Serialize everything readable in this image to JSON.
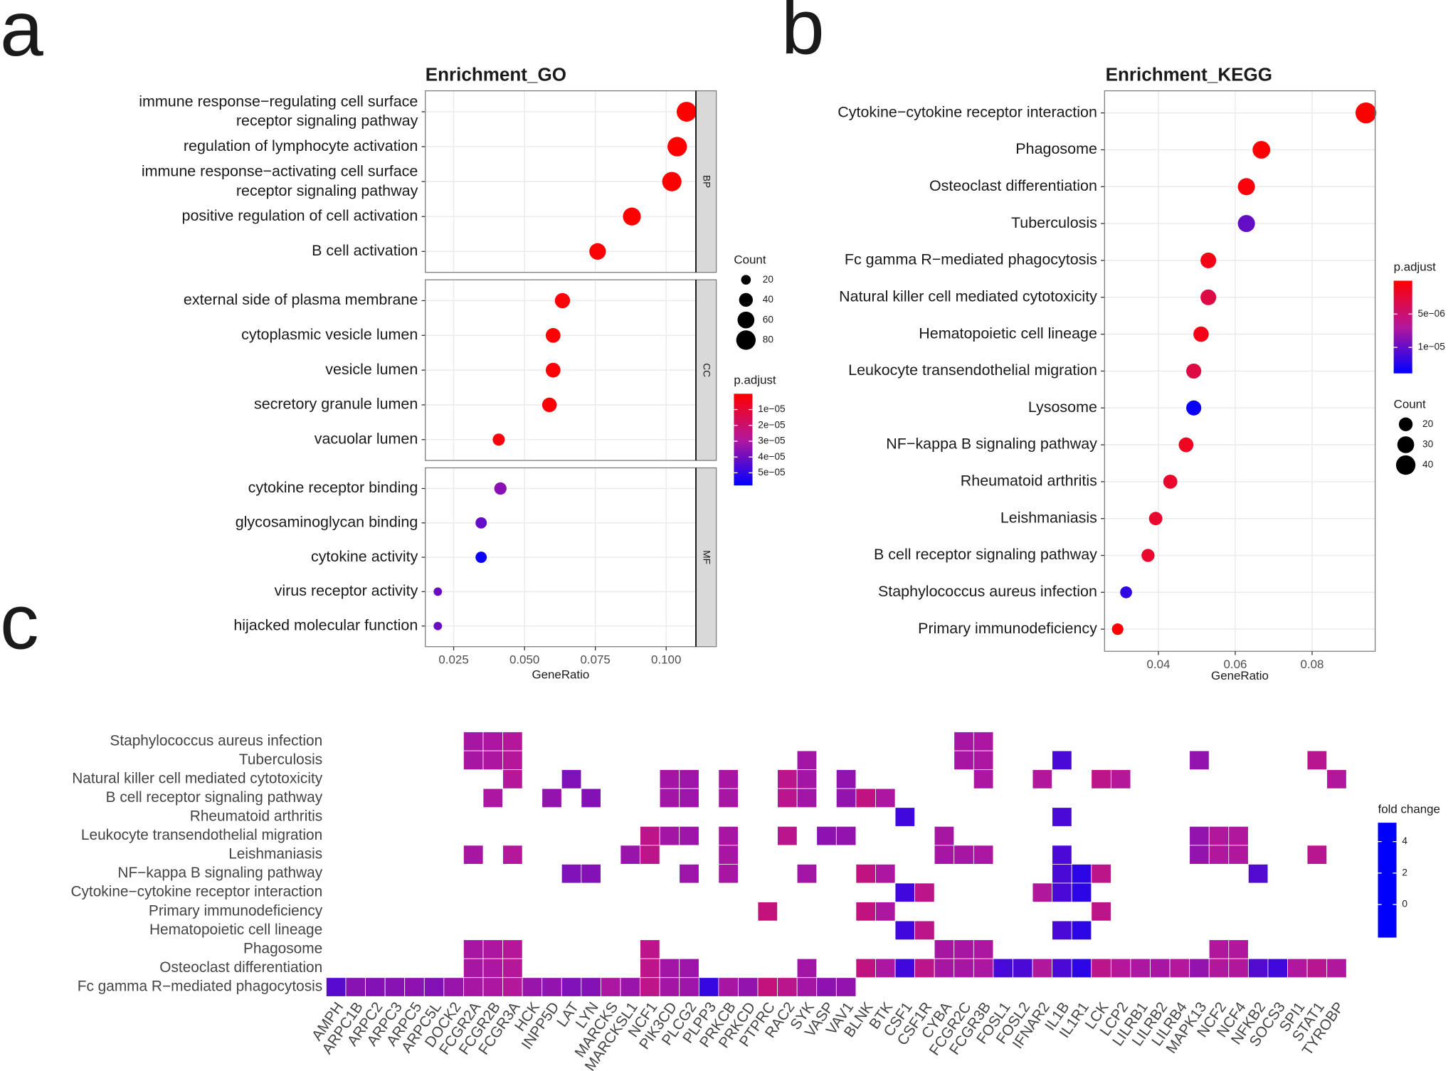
{
  "chart_data": [
    {
      "type": "dot",
      "panel_label": "a",
      "title": "Enrichment_GO",
      "x_label": "GeneRatio",
      "facets": [
        {
          "name": "BP",
          "categories": [
            "immune response−regulating cell surface\nreceptor signaling pathway",
            "regulation of lymphocyte activation",
            "immune response−activating cell surface\nreceptor signaling pathway",
            "positive regulation of cell activation",
            "B cell activation"
          ],
          "values": [
            0.1072,
            0.1039,
            0.102,
            0.0879,
            0.0758
          ],
          "counts": [
            83,
            80,
            79,
            68,
            58
          ],
          "p_adjust": [
            2e-08,
            5e-08,
            3e-08,
            1e-07,
            8e-07
          ]
        },
        {
          "name": "CC",
          "categories": [
            "external side of plasma membrane",
            "cytoplasmic vesicle lumen",
            "vesicle lumen",
            "secretory granule lumen",
            "vacuolar lumen"
          ],
          "values": [
            0.0634,
            0.0601,
            0.0601,
            0.0588,
            0.0409
          ],
          "counts": [
            49,
            46,
            46,
            45,
            31
          ],
          "p_adjust": [
            1e-06,
            1e-06,
            1e-06,
            1e-06,
            2e-06
          ]
        },
        {
          "name": "MF",
          "categories": [
            "cytokine receptor binding",
            "glycosaminoglycan binding",
            "cytokine activity",
            "virus receptor activity",
            "hijacked molecular function"
          ],
          "values": [
            0.0415,
            0.0347,
            0.0347,
            0.0194,
            0.0194
          ],
          "counts": [
            32,
            27,
            27,
            15,
            15
          ],
          "p_adjust": [
            3.6e-05,
            4.2e-05,
            5.6e-05,
            4.1e-05,
            4.1e-05
          ]
        }
      ],
      "xlim": [
        0.015,
        0.1105
      ],
      "xticks": [
        0.025,
        {
          "value": 0.05,
          "label": "0.050"
        },
        0.075,
        {
          "value": 0.1,
          "label": "0.100"
        }
      ],
      "grid": true,
      "size_legend": {
        "title": "Count",
        "values": [
          20,
          40,
          60,
          80
        ]
      },
      "color_legend": {
        "title": "p.adjust",
        "clim": [
          0,
          5.8e-05
        ],
        "reverse": true,
        "colors": [
          "#ff0000",
          "#b3179c",
          "#0000ff"
        ],
        "ticks": [
          {
            "value": 1e-05,
            "label": "1e−05"
          },
          {
            "value": 2e-05,
            "label": "2e−05"
          },
          {
            "value": 3e-05,
            "label": "3e−05"
          },
          {
            "value": 4e-05,
            "label": "4e−05"
          },
          {
            "value": 5e-05,
            "label": "5e−05"
          }
        ]
      }
    },
    {
      "type": "dot",
      "panel_label": "b",
      "title": "Enrichment_KEGG",
      "x_label": "GeneRatio",
      "categories": [
        "Cytokine−cytokine receptor interaction",
        "Phagosome",
        "Osteoclast differentiation",
        "Tuberculosis",
        "Fc gamma R−mediated phagocytosis",
        "Natural killer cell mediated cytotoxicity",
        "Hematopoietic cell lineage",
        "Leukocyte transendothelial migration",
        "Lysosome",
        "NF−kappa B signaling pathway",
        "Rheumatoid arthritis",
        "Leishmaniasis",
        "B cell receptor signaling pathway",
        "Staphylococcus aureus infection",
        "Primary immunodeficiency"
      ],
      "values": [
        0.094,
        0.0668,
        0.0629,
        0.0629,
        0.053,
        0.053,
        0.0511,
        0.0492,
        0.0492,
        0.0472,
        0.0431,
        0.0393,
        0.0373,
        0.0316,
        0.0294
      ],
      "counts": [
        46,
        33,
        31,
        31,
        26,
        26,
        25,
        24,
        24,
        23,
        21,
        19,
        18,
        15,
        14
      ],
      "p_adjust": [
        1e-08,
        1e-07,
        5e-07,
        1e-05,
        1e-06,
        3e-06,
        1e-06,
        3e-06,
        1.35e-05,
        1.5e-06,
        2e-06,
        2e-06,
        2e-06,
        1.2e-05,
        1e-07
      ],
      "xlim": [
        0.026,
        0.0964
      ],
      "xticks": [
        0.04,
        0.06,
        0.08
      ],
      "grid": true,
      "size_legend": {
        "title": "Count",
        "values": [
          20,
          30,
          40
        ]
      },
      "color_legend": {
        "title": "p.adjust",
        "clim": [
          0,
          1.39e-05
        ],
        "reverse": true,
        "colors": [
          "#ff0000",
          "#b3179c",
          "#0000ff"
        ],
        "ticks": [
          {
            "value": 5e-06,
            "label": "5e−06"
          },
          {
            "value": 1e-05,
            "label": "1e−05"
          }
        ]
      }
    },
    {
      "type": "heatmap",
      "panel_label": "c",
      "x": [
        "AMPH",
        "ARPC1B",
        "ARPC2",
        "ARPC3",
        "ARPC5",
        "ARPC5L",
        "DOCK2",
        "FCGR2A",
        "FCGR2B",
        "FCGR3A",
        "HCK",
        "INPP5D",
        "LAT",
        "LYN",
        "MARCKS",
        "MARCKSL1",
        "NCF1",
        "PIK3CD",
        "PLCG2",
        "PLPP3",
        "PRKCB",
        "PRKCD",
        "PTPRC",
        "RAC2",
        "SYK",
        "VASP",
        "VAV1",
        "BLNK",
        "BTK",
        "CSF1",
        "CSF1R",
        "CYBA",
        "FCGR2C",
        "FCGR3B",
        "FOSL1",
        "FOSL2",
        "IFNAR2",
        "IL1B",
        "IL1R1",
        "LCK",
        "LCP2",
        "LILRB1",
        "LILRB2",
        "LILRB4",
        "MAPK13",
        "NCF2",
        "NCF4",
        "NFKB2",
        "SOCS3",
        "SPI1",
        "STAT1",
        "TYROBP"
      ],
      "y": [
        "Staphylococcus aureus infection",
        "Tuberculosis",
        "Natural killer cell mediated cytotoxicity",
        "B cell receptor signaling pathway",
        "Rheumatoid arthritis",
        "Leukocyte transendothelial migration",
        "Leishmaniasis",
        "NF−kappa B signaling pathway",
        "Cytokine−cytokine receptor interaction",
        "Primary immunodeficiency",
        "Hematopoietic cell lineage",
        "Phagosome",
        "Osteoclast differentiation",
        "Fc gamma R−mediated phagocytosis"
      ],
      "z": [
        [
          null,
          null,
          null,
          null,
          null,
          null,
          null,
          1.3,
          1.4,
          1.6,
          null,
          null,
          null,
          null,
          null,
          null,
          null,
          null,
          null,
          null,
          null,
          null,
          null,
          null,
          null,
          null,
          null,
          null,
          null,
          null,
          null,
          null,
          1.3,
          1.4,
          null,
          null,
          null,
          null,
          null,
          null,
          null,
          null,
          null,
          null,
          null,
          null,
          null,
          null,
          null,
          null,
          null,
          null
        ],
        [
          null,
          null,
          null,
          null,
          null,
          null,
          null,
          1.3,
          1.4,
          1.6,
          null,
          null,
          null,
          null,
          null,
          null,
          null,
          null,
          null,
          null,
          null,
          null,
          null,
          null,
          1.2,
          null,
          null,
          null,
          null,
          null,
          null,
          null,
          1.3,
          1.4,
          null,
          null,
          null,
          -0.6,
          null,
          null,
          null,
          null,
          null,
          null,
          0.9,
          null,
          null,
          null,
          null,
          null,
          1.8,
          null
        ],
        [
          null,
          null,
          null,
          null,
          null,
          null,
          null,
          null,
          null,
          1.6,
          null,
          null,
          0.5,
          null,
          null,
          null,
          null,
          1.2,
          1.1,
          null,
          1.3,
          null,
          null,
          1.9,
          1.2,
          null,
          0.9,
          null,
          null,
          null,
          null,
          null,
          null,
          1.4,
          null,
          null,
          1.5,
          null,
          null,
          2.0,
          1.6,
          null,
          null,
          null,
          null,
          null,
          null,
          null,
          null,
          null,
          null,
          1.5
        ],
        [
          null,
          null,
          null,
          null,
          null,
          null,
          null,
          null,
          1.4,
          null,
          null,
          0.9,
          null,
          0.6,
          null,
          null,
          null,
          1.2,
          1.1,
          null,
          1.3,
          null,
          null,
          1.9,
          1.2,
          null,
          0.9,
          2.2,
          1.4,
          null,
          null,
          null,
          null,
          null,
          null,
          null,
          null,
          null,
          null,
          null,
          null,
          null,
          null,
          null,
          null,
          null,
          null,
          null,
          null,
          null,
          null,
          null
        ],
        [
          null,
          null,
          null,
          null,
          null,
          null,
          null,
          null,
          null,
          null,
          null,
          null,
          null,
          null,
          null,
          null,
          null,
          null,
          null,
          null,
          null,
          null,
          null,
          null,
          null,
          null,
          null,
          null,
          null,
          -0.8,
          null,
          null,
          null,
          null,
          null,
          null,
          null,
          -0.6,
          null,
          null,
          null,
          null,
          null,
          null,
          null,
          null,
          null,
          null,
          null,
          null,
          null,
          null
        ],
        [
          null,
          null,
          null,
          null,
          null,
          null,
          null,
          null,
          null,
          null,
          null,
          null,
          null,
          null,
          null,
          null,
          2.0,
          1.2,
          1.1,
          null,
          1.3,
          null,
          null,
          1.9,
          null,
          0.8,
          0.9,
          null,
          null,
          null,
          null,
          1.3,
          null,
          null,
          null,
          null,
          null,
          null,
          null,
          null,
          null,
          null,
          null,
          null,
          0.9,
          1.5,
          1.5,
          null,
          null,
          null,
          null,
          null
        ],
        [
          null,
          null,
          null,
          null,
          null,
          null,
          null,
          1.3,
          null,
          1.6,
          null,
          null,
          null,
          null,
          null,
          1.0,
          2.0,
          null,
          null,
          null,
          1.3,
          null,
          null,
          null,
          null,
          null,
          null,
          null,
          null,
          null,
          null,
          1.3,
          1.3,
          1.4,
          null,
          null,
          null,
          -0.6,
          null,
          null,
          null,
          null,
          null,
          null,
          0.9,
          1.5,
          1.5,
          null,
          null,
          null,
          1.8,
          null
        ],
        [
          null,
          null,
          null,
          null,
          null,
          null,
          null,
          null,
          null,
          null,
          null,
          null,
          0.5,
          0.6,
          null,
          null,
          null,
          null,
          1.1,
          null,
          1.3,
          null,
          null,
          null,
          1.2,
          null,
          null,
          2.2,
          1.4,
          null,
          null,
          null,
          null,
          null,
          null,
          null,
          null,
          -0.6,
          -1.2,
          2.0,
          null,
          null,
          null,
          null,
          null,
          null,
          null,
          -0.4,
          null,
          null,
          null,
          null
        ],
        [
          null,
          null,
          null,
          null,
          null,
          null,
          null,
          null,
          null,
          null,
          null,
          null,
          null,
          null,
          null,
          null,
          null,
          null,
          null,
          null,
          null,
          null,
          null,
          null,
          null,
          null,
          null,
          null,
          null,
          -0.8,
          2.0,
          null,
          null,
          null,
          null,
          null,
          1.5,
          -0.6,
          -1.2,
          null,
          null,
          null,
          null,
          null,
          null,
          null,
          null,
          null,
          null,
          null,
          null,
          null
        ],
        [
          null,
          null,
          null,
          null,
          null,
          null,
          null,
          null,
          null,
          null,
          null,
          null,
          null,
          null,
          null,
          null,
          null,
          null,
          null,
          null,
          null,
          null,
          2.3,
          null,
          null,
          null,
          null,
          2.2,
          1.4,
          null,
          null,
          null,
          null,
          null,
          null,
          null,
          null,
          null,
          null,
          2.0,
          null,
          null,
          null,
          null,
          null,
          null,
          null,
          null,
          null,
          null,
          null,
          null
        ],
        [
          null,
          null,
          null,
          null,
          null,
          null,
          null,
          null,
          null,
          null,
          null,
          null,
          null,
          null,
          null,
          null,
          null,
          null,
          null,
          null,
          null,
          null,
          null,
          null,
          null,
          null,
          null,
          null,
          null,
          -0.8,
          2.0,
          null,
          null,
          null,
          null,
          null,
          null,
          -0.6,
          -1.2,
          null,
          null,
          null,
          null,
          null,
          null,
          null,
          null,
          null,
          null,
          null,
          null,
          null
        ],
        [
          null,
          null,
          null,
          null,
          null,
          null,
          null,
          1.3,
          1.4,
          1.6,
          null,
          null,
          null,
          null,
          null,
          null,
          2.0,
          null,
          null,
          null,
          null,
          null,
          null,
          null,
          null,
          null,
          null,
          null,
          null,
          null,
          null,
          1.3,
          1.3,
          1.4,
          null,
          null,
          null,
          null,
          null,
          null,
          null,
          null,
          null,
          null,
          null,
          1.5,
          1.5,
          null,
          null,
          null,
          null,
          null
        ],
        [
          null,
          null,
          null,
          null,
          null,
          null,
          null,
          1.3,
          1.4,
          1.6,
          null,
          null,
          null,
          null,
          null,
          null,
          2.0,
          1.2,
          1.1,
          null,
          null,
          null,
          null,
          null,
          1.2,
          null,
          null,
          2.2,
          1.4,
          -0.8,
          2.0,
          1.3,
          1.3,
          1.4,
          -0.7,
          -0.6,
          1.5,
          -0.6,
          -1.2,
          2.0,
          1.6,
          1.4,
          1.3,
          1.6,
          0.9,
          1.5,
          1.5,
          -0.4,
          -0.8,
          1.5,
          1.8,
          1.5
        ],
        [
          -0.3,
          0.7,
          0.6,
          0.7,
          0.8,
          0.6,
          1.0,
          1.3,
          1.4,
          1.6,
          1.0,
          0.9,
          0.5,
          0.6,
          1.4,
          1.0,
          2.0,
          1.2,
          1.1,
          -1.0,
          1.3,
          0.9,
          2.3,
          1.9,
          1.2,
          0.8,
          0.9,
          null,
          null,
          null,
          null,
          null,
          null,
          null,
          null,
          null,
          null,
          null,
          null,
          null,
          null,
          null,
          null,
          null,
          null,
          null,
          null,
          null,
          null,
          null,
          null,
          null
        ]
      ],
      "color_legend": {
        "title": "fold change",
        "clim": [
          -2.1,
          5.2
        ],
        "reverse": false,
        "colors": [
          "#0000ff",
          "#b3179c",
          "#ff0000"
        ],
        "ticks": [
          0,
          2,
          4
        ]
      }
    }
  ]
}
